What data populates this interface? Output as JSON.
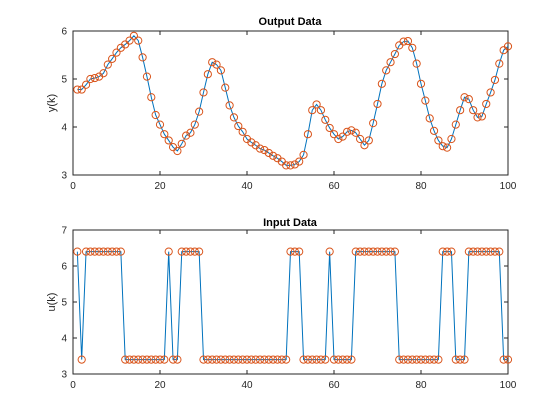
{
  "colors": {
    "line": "#0072BD",
    "marker": "#D95319",
    "axis": "#262626"
  },
  "chart_data": [
    {
      "type": "line",
      "title": "Output Data",
      "xlabel": "",
      "ylabel": "y(k)",
      "xlim": [
        0,
        100
      ],
      "ylim": [
        3,
        6
      ],
      "xticks": [
        0,
        20,
        40,
        60,
        80,
        100
      ],
      "yticks": [
        3,
        4,
        5,
        6
      ],
      "grid": false,
      "x": [
        1,
        2,
        3,
        4,
        5,
        6,
        7,
        8,
        9,
        10,
        11,
        12,
        13,
        14,
        15,
        16,
        17,
        18,
        19,
        20,
        21,
        22,
        23,
        24,
        25,
        26,
        27,
        28,
        29,
        30,
        31,
        32,
        33,
        34,
        35,
        36,
        37,
        38,
        39,
        40,
        41,
        42,
        43,
        44,
        45,
        46,
        47,
        48,
        49,
        50,
        51,
        52,
        53,
        54,
        55,
        56,
        57,
        58,
        59,
        60,
        61,
        62,
        63,
        64,
        65,
        66,
        67,
        68,
        69,
        70,
        71,
        72,
        73,
        74,
        75,
        76,
        77,
        78,
        79,
        80,
        81,
        82,
        83,
        84,
        85,
        86,
        87,
        88,
        89,
        90,
        91,
        92,
        93,
        94,
        95,
        96,
        97,
        98,
        99,
        100
      ],
      "y": [
        4.78,
        4.78,
        4.88,
        5.0,
        5.02,
        5.05,
        5.12,
        5.3,
        5.42,
        5.55,
        5.65,
        5.72,
        5.8,
        5.9,
        5.8,
        5.45,
        5.05,
        4.62,
        4.25,
        4.05,
        3.85,
        3.72,
        3.58,
        3.5,
        3.65,
        3.82,
        3.88,
        4.05,
        4.32,
        4.72,
        5.1,
        5.35,
        5.3,
        5.18,
        4.82,
        4.45,
        4.2,
        4.02,
        3.9,
        3.75,
        3.68,
        3.62,
        3.55,
        3.52,
        3.46,
        3.4,
        3.35,
        3.28,
        3.2,
        3.2,
        3.22,
        3.28,
        3.42,
        3.85,
        4.35,
        4.47,
        4.35,
        4.15,
        3.98,
        3.85,
        3.75,
        3.8,
        3.9,
        3.93,
        3.88,
        3.75,
        3.62,
        3.72,
        4.08,
        4.48,
        4.9,
        5.18,
        5.35,
        5.52,
        5.7,
        5.78,
        5.79,
        5.65,
        5.32,
        4.9,
        4.55,
        4.18,
        3.92,
        3.72,
        3.6,
        3.57,
        3.75,
        4.05,
        4.35,
        4.62,
        4.58,
        4.35,
        4.2,
        4.22,
        4.48,
        4.72,
        4.98,
        5.32,
        5.6,
        5.68
      ],
      "series": [
        {
          "name": "",
          "style": "line with circle markers"
        }
      ]
    },
    {
      "type": "line",
      "title": "Input Data",
      "xlabel": "",
      "ylabel": "u(k)",
      "xlim": [
        0,
        100
      ],
      "ylim": [
        3,
        7
      ],
      "xticks": [
        0,
        20,
        40,
        60,
        80,
        100
      ],
      "yticks": [
        3,
        4,
        5,
        6,
        7
      ],
      "grid": false,
      "x": [
        1,
        2,
        3,
        4,
        5,
        6,
        7,
        8,
        9,
        10,
        11,
        12,
        13,
        14,
        15,
        16,
        17,
        18,
        19,
        20,
        21,
        22,
        23,
        24,
        25,
        26,
        27,
        28,
        29,
        30,
        31,
        32,
        33,
        34,
        35,
        36,
        37,
        38,
        39,
        40,
        41,
        42,
        43,
        44,
        45,
        46,
        47,
        48,
        49,
        50,
        51,
        52,
        53,
        54,
        55,
        56,
        57,
        58,
        59,
        60,
        61,
        62,
        63,
        64,
        65,
        66,
        67,
        68,
        69,
        70,
        71,
        72,
        73,
        74,
        75,
        76,
        77,
        78,
        79,
        80,
        81,
        82,
        83,
        84,
        85,
        86,
        87,
        88,
        89,
        90,
        91,
        92,
        93,
        94,
        95,
        96,
        97,
        98,
        99,
        100
      ],
      "y": [
        6.4,
        3.4,
        6.4,
        6.4,
        6.4,
        6.4,
        6.4,
        6.4,
        6.4,
        6.4,
        6.4,
        3.4,
        3.4,
        3.4,
        3.4,
        3.4,
        3.4,
        3.4,
        3.4,
        3.4,
        3.4,
        6.4,
        3.4,
        3.4,
        6.4,
        6.4,
        6.4,
        6.4,
        6.4,
        3.4,
        3.4,
        3.4,
        3.4,
        3.4,
        3.4,
        3.4,
        3.4,
        3.4,
        3.4,
        3.4,
        3.4,
        3.4,
        3.4,
        3.4,
        3.4,
        3.4,
        3.4,
        3.4,
        3.4,
        6.4,
        6.4,
        6.4,
        3.4,
        3.4,
        3.4,
        3.4,
        3.4,
        3.4,
        6.4,
        3.4,
        3.4,
        3.4,
        3.4,
        3.4,
        6.4,
        6.4,
        6.4,
        6.4,
        6.4,
        6.4,
        6.4,
        6.4,
        6.4,
        6.4,
        3.4,
        3.4,
        3.4,
        3.4,
        3.4,
        3.4,
        3.4,
        3.4,
        3.4,
        3.4,
        6.4,
        6.4,
        6.4,
        3.4,
        3.4,
        3.4,
        6.4,
        6.4,
        6.4,
        6.4,
        6.4,
        6.4,
        6.4,
        6.4,
        3.4,
        3.4
      ],
      "series": [
        {
          "name": "",
          "style": "line with circle markers"
        }
      ]
    }
  ]
}
